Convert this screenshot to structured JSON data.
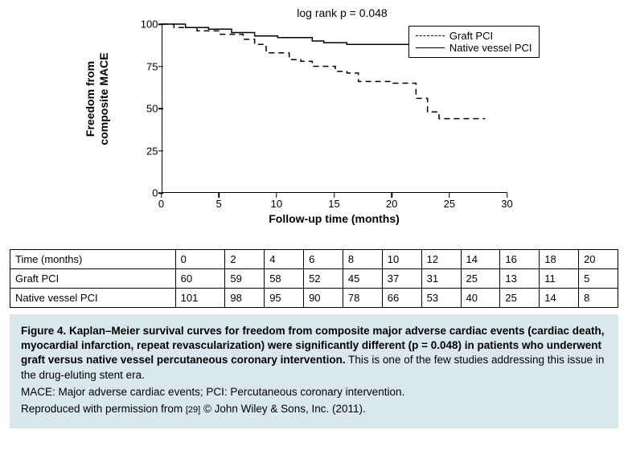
{
  "chart": {
    "type": "kaplan-meier-step-line",
    "top_label": "log rank p = 0.048",
    "y_axis_label": "Freedom from\ncomposite MACE",
    "x_axis_label": "Follow-up time (months)",
    "xlim": [
      0,
      30
    ],
    "ylim": [
      0,
      100
    ],
    "x_ticks": [
      0,
      5,
      10,
      15,
      20,
      25,
      30
    ],
    "y_ticks": [
      0,
      25,
      50,
      75,
      100
    ],
    "tick_fontsize": 13,
    "label_fontsize": 14,
    "background_color": "#ffffff",
    "axis_color": "#000000",
    "series": [
      {
        "name": "Graft PCI",
        "line_style": "dashed",
        "dash_pattern": "7,5",
        "color": "#000000",
        "line_width": 1.5,
        "points": [
          [
            0,
            100
          ],
          [
            1,
            98
          ],
          [
            3,
            96
          ],
          [
            5,
            94
          ],
          [
            7,
            91
          ],
          [
            8,
            88
          ],
          [
            9,
            83
          ],
          [
            10,
            83
          ],
          [
            11,
            79
          ],
          [
            12,
            78
          ],
          [
            13,
            75
          ],
          [
            14,
            75
          ],
          [
            15,
            72
          ],
          [
            16,
            71
          ],
          [
            17,
            66
          ],
          [
            20,
            65
          ],
          [
            22,
            56
          ],
          [
            23,
            48
          ],
          [
            24,
            44
          ],
          [
            28,
            44
          ]
        ]
      },
      {
        "name": "Native vessel PCI",
        "line_style": "solid",
        "color": "#000000",
        "line_width": 1.5,
        "points": [
          [
            0,
            100
          ],
          [
            2,
            98
          ],
          [
            4,
            97
          ],
          [
            6,
            95
          ],
          [
            8,
            93
          ],
          [
            10,
            92
          ],
          [
            13,
            90
          ],
          [
            14,
            89
          ],
          [
            16,
            88
          ],
          [
            27,
            88
          ]
        ]
      }
    ],
    "legend": {
      "position": "top-right",
      "border_color": "#000000",
      "fontsize": 13
    }
  },
  "table": {
    "header_label": "Time (months)",
    "time_points": [
      0,
      2,
      4,
      6,
      8,
      10,
      12,
      14,
      16,
      18,
      20
    ],
    "rows": [
      {
        "label": "Graft PCI",
        "values": [
          60,
          59,
          58,
          52,
          45,
          37,
          31,
          25,
          13,
          11,
          5
        ]
      },
      {
        "label": "Native vessel PCI",
        "values": [
          101,
          98,
          95,
          90,
          78,
          66,
          53,
          40,
          25,
          14,
          8
        ]
      }
    ],
    "border_color": "#000000",
    "fontsize": 13
  },
  "caption": {
    "background_color": "#dbe7ee",
    "fontsize": 13.5,
    "figure_label": "Figure 4.",
    "bold_text": "Kaplan–Meier survival curves for freedom from composite major adverse cardiac events (cardiac death, myocardial infarction, repeat revascularization) were significantly different (p = 0.048) in patients who underwent graft versus native vessel percutaneous coronary intervention.",
    "body_text": "This is one of the few studies addressing this issue in the drug-eluting stent era.",
    "abbrev_text": "MACE: Major adverse cardiac events; PCI: Percutaneous coronary intervention.",
    "repro_prefix": "Reproduced with permission from ",
    "repro_ref": "[29]",
    "repro_suffix": " © John Wiley & Sons, Inc. (2011)."
  }
}
